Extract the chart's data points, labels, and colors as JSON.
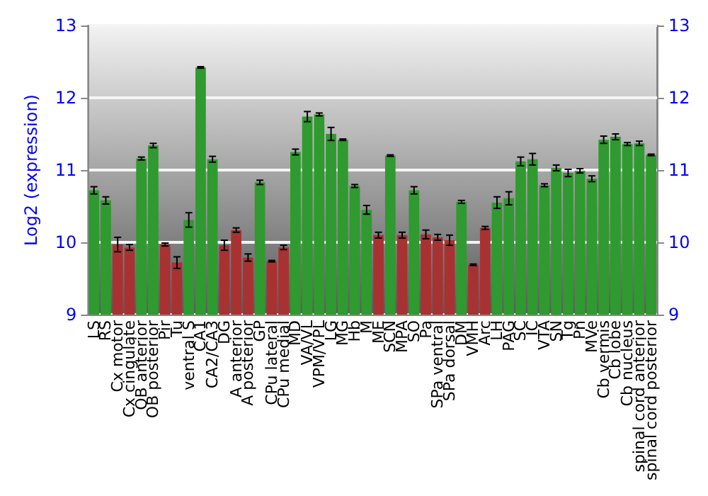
{
  "chart_data": {
    "type": "bar",
    "ylabel": "Log2 (expression)",
    "categories": [
      "LS",
      "RS",
      "Cx motor",
      "Cx cingulate",
      "OB anterior",
      "OB posterior",
      "Pir",
      "Tu",
      "ventral S",
      "CA1",
      "CA2/CA3",
      "DG",
      "A anterior",
      "A posterior",
      "GP",
      "CPu lateral",
      "CPu medial",
      "MD",
      "VA/VL",
      "VPM/VPL",
      "LG",
      "MG",
      "Hb",
      "M",
      "ME",
      "SCN",
      "MPA",
      "SO",
      "Pa",
      "SPa ventral",
      "SPa dorsal",
      "DM",
      "VMH",
      "Arc",
      "LH",
      "PAG",
      "SC",
      "IC",
      "VTA",
      "SN",
      "Tg",
      "Pn",
      "MVe",
      "Cb vermis",
      "Cb lobe",
      "Cb nucleus",
      "spinal cord anterior",
      "spinal cord posterior"
    ],
    "values": [
      10.72,
      10.58,
      9.97,
      9.93,
      11.16,
      11.34,
      9.97,
      9.72,
      10.31,
      12.42,
      11.15,
      9.96,
      10.17,
      9.79,
      10.83,
      9.74,
      9.93,
      11.25,
      11.74,
      11.77,
      11.5,
      11.42,
      10.78,
      10.45,
      10.1,
      11.2,
      10.1,
      10.72,
      10.11,
      10.07,
      10.03,
      10.56,
      9.69,
      10.2,
      10.55,
      10.61,
      11.12,
      11.15,
      10.79,
      11.03,
      10.96,
      10.99,
      10.88,
      11.42,
      11.46,
      11.36,
      11.37,
      11.21
    ],
    "errors": [
      0.05,
      0.05,
      0.1,
      0.04,
      0.02,
      0.03,
      0.02,
      0.08,
      0.1,
      0.01,
      0.04,
      0.07,
      0.03,
      0.05,
      0.03,
      0.01,
      0.03,
      0.04,
      0.07,
      0.02,
      0.09,
      0.01,
      0.02,
      0.06,
      0.04,
      0.01,
      0.04,
      0.05,
      0.06,
      0.04,
      0.07,
      0.02,
      0.01,
      0.02,
      0.08,
      0.09,
      0.06,
      0.08,
      0.02,
      0.04,
      0.05,
      0.03,
      0.04,
      0.05,
      0.04,
      0.02,
      0.03,
      0.01
    ],
    "colors": [
      "#2f9a2f",
      "#2f9a2f",
      "#a83232",
      "#a83232",
      "#2f9a2f",
      "#2f9a2f",
      "#a83232",
      "#a83232",
      "#2f9a2f",
      "#2f9a2f",
      "#2f9a2f",
      "#a83232",
      "#a83232",
      "#a83232",
      "#2f9a2f",
      "#a83232",
      "#a83232",
      "#2f9a2f",
      "#2f9a2f",
      "#2f9a2f",
      "#2f9a2f",
      "#2f9a2f",
      "#2f9a2f",
      "#2f9a2f",
      "#a83232",
      "#2f9a2f",
      "#a83232",
      "#2f9a2f",
      "#a83232",
      "#a83232",
      "#a83232",
      "#2f9a2f",
      "#a83232",
      "#a83232",
      "#2f9a2f",
      "#2f9a2f",
      "#2f9a2f",
      "#2f9a2f",
      "#2f9a2f",
      "#2f9a2f",
      "#2f9a2f",
      "#2f9a2f",
      "#2f9a2f",
      "#2f9a2f",
      "#2f9a2f",
      "#2f9a2f",
      "#2f9a2f",
      "#2f9a2f"
    ],
    "ylim": [
      9,
      13
    ],
    "yticks": [
      9,
      10,
      11,
      12,
      13
    ],
    "y2lim": [
      9,
      13
    ],
    "y2ticks": [
      9,
      10,
      11,
      12,
      13
    ],
    "grid": "y"
  }
}
